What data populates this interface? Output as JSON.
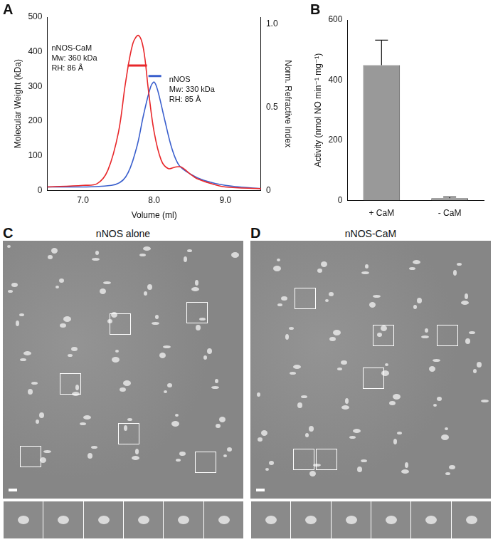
{
  "chart_data": [
    {
      "panel": "A",
      "type": "line",
      "x_label": "Volume (ml)",
      "y_label": "Molecular Weight (kDa)",
      "y2_label": "Norm. Refractive Index",
      "xlim": [
        6.5,
        9.5
      ],
      "xticks": [
        {
          "value": 7,
          "label": "7.0"
        },
        {
          "value": 8,
          "label": "8.0"
        },
        {
          "value": 9,
          "label": "9.0"
        }
      ],
      "ylim": [
        0,
        500
      ],
      "yticks": [
        0,
        100,
        200,
        300,
        400,
        500
      ],
      "y2lim": [
        0,
        1.04
      ],
      "y2ticks": [
        0,
        0.5,
        {
          "value": 1,
          "label": "1.0"
        }
      ],
      "grid": false,
      "series": [
        {
          "color": "#e8272a",
          "axis": "y2",
          "x": [
            6.5,
            7.0,
            7.2,
            7.35,
            7.5,
            7.6,
            7.7,
            7.78,
            7.85,
            7.92,
            8.0,
            8.1,
            8.2,
            8.3,
            8.38,
            8.5,
            8.6,
            8.8,
            9.0,
            9.5
          ],
          "values": [
            0.02,
            0.03,
            0.04,
            0.12,
            0.35,
            0.65,
            0.88,
            0.93,
            0.85,
            0.6,
            0.35,
            0.18,
            0.13,
            0.14,
            0.14,
            0.1,
            0.07,
            0.04,
            0.02,
            0.01
          ]
        },
        {
          "color": "#3a5fcd",
          "axis": "y2",
          "x": [
            6.5,
            7.4,
            7.6,
            7.75,
            7.85,
            7.95,
            8.0,
            8.05,
            8.15,
            8.25,
            8.35,
            8.5,
            8.7,
            9.0,
            9.5
          ],
          "values": [
            0.02,
            0.03,
            0.08,
            0.25,
            0.45,
            0.62,
            0.65,
            0.6,
            0.42,
            0.25,
            0.15,
            0.1,
            0.06,
            0.03,
            0.01
          ]
        },
        {
          "color": "#e8272a",
          "axis": "y",
          "x": [
            7.63,
            7.7,
            7.77,
            7.84,
            7.9
          ],
          "values": [
            360,
            360,
            360,
            360,
            360
          ]
        },
        {
          "color": "#3a5fcd",
          "axis": "y",
          "x": [
            7.92,
            7.98,
            8.04,
            8.1
          ],
          "values": [
            330,
            330,
            330,
            330
          ]
        }
      ],
      "annotations": [
        {
          "text": [
            "nNOS-CaM",
            "Mw: 360 kDa",
            "RH: 86 Å"
          ]
        },
        {
          "text": [
            "nNOS",
            "Mw: 330 kDa",
            "RH: 85 Å"
          ]
        }
      ]
    },
    {
      "panel": "B",
      "type": "bar",
      "y_label": "Activity (nmol NO min⁻¹ mg⁻¹)",
      "categories": [
        "+ CaM",
        "- CaM"
      ],
      "values": [
        450,
        8
      ],
      "errors": [
        83,
        4
      ],
      "color": "#999999",
      "ylim": [
        0,
        600
      ],
      "yticks": [
        0,
        200,
        400,
        600
      ],
      "grid": false
    }
  ],
  "micrographs": [
    {
      "panel": "C",
      "title": "nNOS alone"
    },
    {
      "panel": "D",
      "title": "nNOS-CaM"
    }
  ]
}
